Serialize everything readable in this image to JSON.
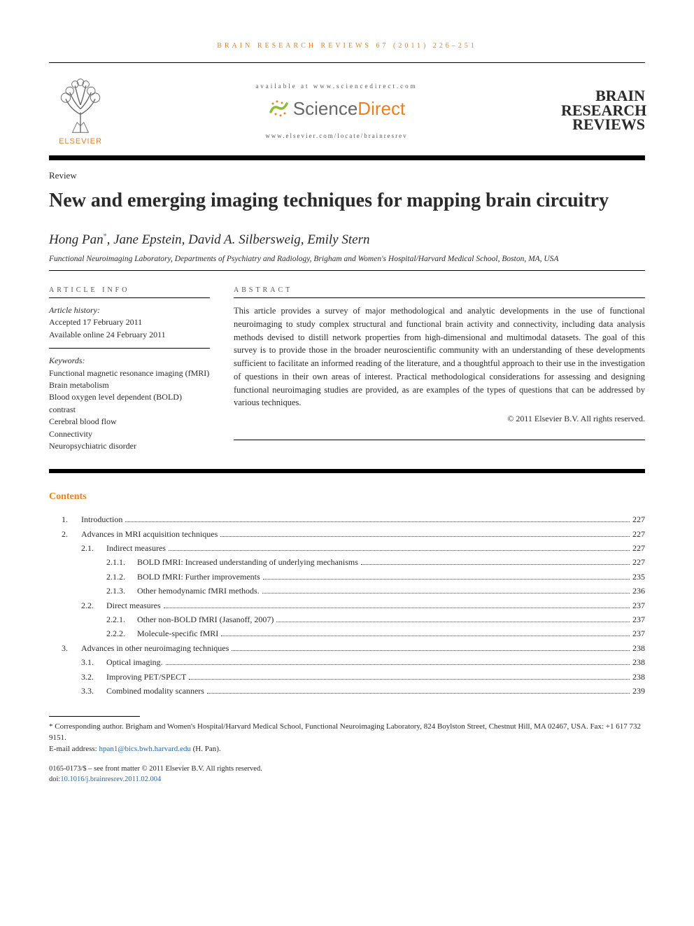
{
  "running_head": "BRAIN RESEARCH REVIEWS 67 (2011) 226–251",
  "header": {
    "availability": "available at www.sciencedirect.com",
    "sciencedirect": {
      "part1": "Science",
      "part2": "Direct"
    },
    "journal_url": "www.elsevier.com/locate/brainresrev",
    "elsevier_label": "ELSEVIER",
    "journal_logo": {
      "line1": "BRAIN",
      "line2": "RESEARCH",
      "line3": "REVIEWS"
    }
  },
  "article_type": "Review",
  "title": "New and emerging imaging techniques for mapping brain circuitry",
  "authors": "Hong Pan*, Jane Epstein, David A. Silbersweig, Emily Stern",
  "affiliation": "Functional Neuroimaging Laboratory, Departments of Psychiatry and Radiology, Brigham and Women's Hospital/Harvard Medical School, Boston, MA, USA",
  "info": {
    "label": "ARTICLE INFO",
    "history_hdr": "Article history:",
    "history": [
      "Accepted 17 February 2011",
      "Available online 24 February 2011"
    ],
    "keywords_hdr": "Keywords:",
    "keywords": [
      "Functional magnetic resonance imaging (fMRI)",
      "Brain metabolism",
      "Blood oxygen level dependent (BOLD) contrast",
      "Cerebral blood flow",
      "Connectivity",
      "Neuropsychiatric disorder"
    ]
  },
  "abstract": {
    "label": "ABSTRACT",
    "text": "This article provides a survey of major methodological and analytic developments in the use of functional neuroimaging to study complex structural and functional brain activity and connectivity, including data analysis methods devised to distill network properties from high-dimensional and multimodal datasets. The goal of this survey is to provide those in the broader neuroscientific community with an understanding of these developments sufficient to facilitate an informed reading of the literature, and a thoughtful approach to their use in the investigation of questions in their own areas of interest. Practical methodological considerations for assessing and designing functional neuroimaging studies are provided, as are examples of the types of questions that can be addressed by various techniques.",
    "copyright": "© 2011 Elsevier B.V. All rights reserved."
  },
  "contents_heading": "Contents",
  "toc": [
    {
      "lvl": 1,
      "num": "1.",
      "label": "Introduction",
      "page": "227"
    },
    {
      "lvl": 1,
      "num": "2.",
      "label": "Advances in MRI acquisition techniques",
      "page": "227"
    },
    {
      "lvl": 2,
      "num": "2.1.",
      "label": "Indirect measures",
      "page": "227"
    },
    {
      "lvl": 3,
      "num": "2.1.1.",
      "label": "BOLD fMRI: Increased understanding of underlying mechanisms",
      "page": "227"
    },
    {
      "lvl": 3,
      "num": "2.1.2.",
      "label": "BOLD fMRI: Further improvements",
      "page": "235"
    },
    {
      "lvl": 3,
      "num": "2.1.3.",
      "label": "Other hemodynamic fMRI methods.",
      "page": "236"
    },
    {
      "lvl": 2,
      "num": "2.2.",
      "label": "Direct measures",
      "page": "237"
    },
    {
      "lvl": 3,
      "num": "2.2.1.",
      "label": "Other non-BOLD fMRI (Jasanoff, 2007)",
      "page": "237"
    },
    {
      "lvl": 3,
      "num": "2.2.2.",
      "label": "Molecule-specific fMRI",
      "page": "237"
    },
    {
      "lvl": 1,
      "num": "3.",
      "label": "Advances in other neuroimaging techniques",
      "page": "238"
    },
    {
      "lvl": 2,
      "num": "3.1.",
      "label": "Optical imaging.",
      "page": "238"
    },
    {
      "lvl": 2,
      "num": "3.2.",
      "label": "Improving PET/SPECT",
      "page": "238"
    },
    {
      "lvl": 2,
      "num": "3.3.",
      "label": "Combined modality scanners",
      "page": "239"
    }
  ],
  "footnote": {
    "corresponding": "* Corresponding author. Brigham and Women's Hospital/Harvard Medical School, Functional Neuroimaging Laboratory, 824 Boylston Street, Chestnut Hill, MA 02467, USA. Fax: +1 617 732 9151.",
    "email_label": "E-mail address: ",
    "email": "hpan1@bics.bwh.harvard.edu",
    "email_tail": " (H. Pan)."
  },
  "bottom": {
    "issn": "0165-0173/$ – see front matter © 2011 Elsevier B.V. All rights reserved.",
    "doi_label": "doi:",
    "doi": "10.1016/j.brainresrev.2011.02.004"
  },
  "colors": {
    "accent_orange": "#ef7f1a",
    "link_blue": "#2268b1",
    "sd_gray": "#676767"
  }
}
